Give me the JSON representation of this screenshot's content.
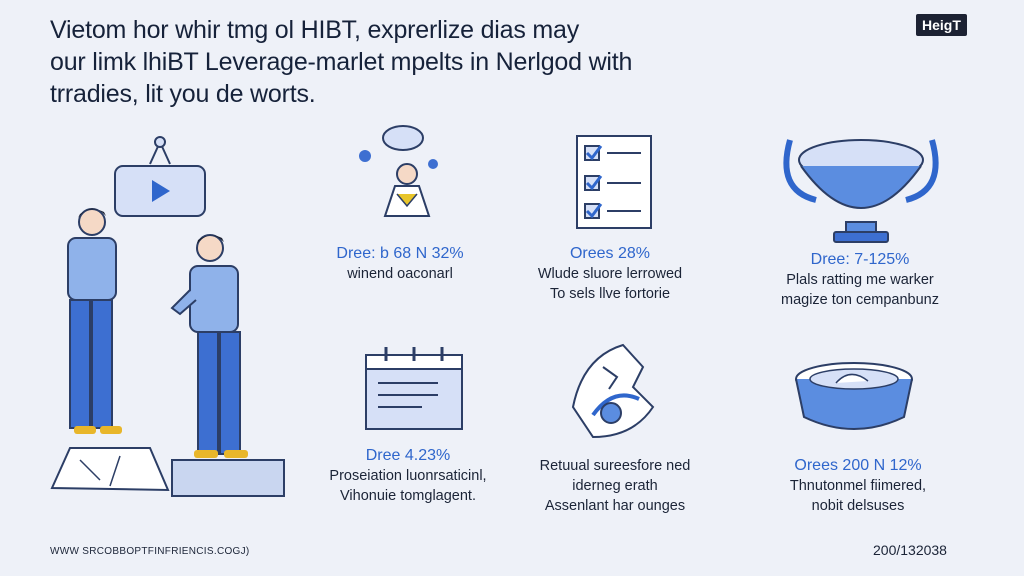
{
  "header": {
    "headline_lines": [
      "Vietom hor whir tmg ol HIBT, exprerlize dias may",
      "our limk lhiBT Leverage-marlet mpelts in Nerlgod with",
      "trradies, lit you de worts."
    ],
    "brand": "HeigT"
  },
  "stats": [
    {
      "value": "Orees 28%",
      "desc": [
        "Wlude sluore lerrowed",
        "To sels llve fortorie"
      ],
      "icon": "checklist-icon"
    },
    {
      "value": "Dree: 7-125%",
      "desc": [
        "Plals ratting me warker",
        "magize ton cempanbunz"
      ],
      "icon": "trophy-bowl-icon"
    },
    {
      "value": "Dree 4.23%",
      "desc": [
        "Proseiation luonrsaticinl,",
        "Vihonuie tomglagent."
      ],
      "icon": "calendar-icon"
    },
    {
      "value": "Dree: b 68 N 32%",
      "desc": [
        "winend oaconarl"
      ],
      "icon": "person-celebration-icon"
    },
    {
      "value": "",
      "desc": [
        "Retuual sureesfore ned",
        "iderneg erath",
        "Assenlant har ounges"
      ],
      "icon": "broken-chart-icon"
    },
    {
      "value": "Orees 200 N 12%",
      "desc": [
        "Thnutonmel fiimered,",
        "nobit delsuses"
      ],
      "icon": "bowl-icon"
    }
  ],
  "footer": {
    "source": "WWW SRCOBBOPTFINFRIENCIS.COGJ)",
    "code": "200/132038"
  },
  "colors": {
    "accent": "#2f66cc",
    "bg": "#eef1f8",
    "ink": "#16223a"
  }
}
